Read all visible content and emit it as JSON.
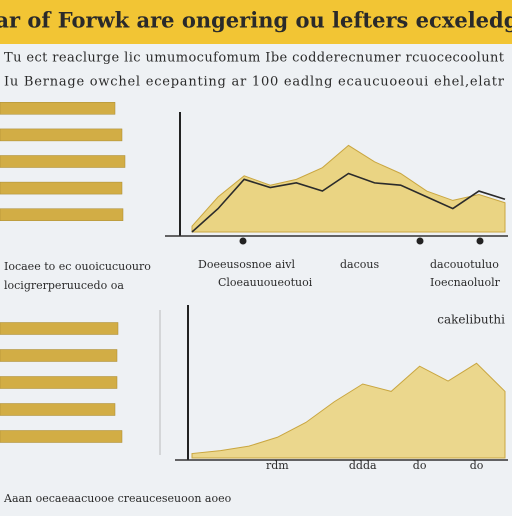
{
  "header": {
    "title": "Ocar of Forwk are ongering ou lefters ecxeledgon"
  },
  "intro": [
    "Tu ect reaclurge lic umumocufomum Ibe codderecnumer rcuocecoolunt",
    "Iu Bernage owchel ecepanting ar 100 eadlng ecaucuoeoui ehel,elatr"
  ],
  "captions": [
    "Iocaee to ec ouoicucuouro",
    "locigrerperuucedo oa",
    "Doeeusosnoe aivl",
    "Cloeauuoueotuoi",
    "dacous",
    "dacouotuluo",
    "Ioecnaoluolr"
  ],
  "footer": "Aaan oecaeaacuooe creauceseuoon aoeo",
  "chart_data": [
    {
      "type": "hbar",
      "categories": [
        null,
        null,
        null,
        null,
        null
      ],
      "values": [
        115,
        122,
        125,
        122,
        123
      ],
      "color": "#d2ad45",
      "xlim": [
        0,
        140
      ]
    },
    {
      "type": "area",
      "categories": [
        null,
        null,
        null,
        null,
        null,
        null,
        null,
        null,
        null,
        null,
        null,
        null,
        null
      ],
      "series": [
        {
          "name": "fill",
          "color": "#e9cf6e",
          "values": [
            5,
            30,
            48,
            40,
            45,
            55,
            74,
            60,
            50,
            35,
            27,
            32,
            25
          ]
        },
        {
          "name": "line",
          "color": "#2b2b2b",
          "values": [
            0,
            20,
            45,
            38,
            42,
            35,
            50,
            42,
            40,
            30,
            20,
            35,
            28
          ]
        }
      ],
      "ylim": [
        0,
        100
      ]
    },
    {
      "type": "hbar",
      "categories": [
        null,
        null,
        null,
        null,
        null
      ],
      "values": [
        118,
        117,
        117,
        115,
        122
      ],
      "color": "#d2ad45",
      "xlim": [
        0,
        140
      ]
    },
    {
      "type": "area",
      "title": "cakelibuthi",
      "categories": [
        null,
        null,
        null,
        "rdm",
        null,
        null,
        "ddda",
        null,
        "do",
        null,
        "do",
        null
      ],
      "series": [
        {
          "name": "fill",
          "color": "#ead27a",
          "values": [
            3,
            5,
            8,
            14,
            24,
            38,
            50,
            45,
            62,
            52,
            64,
            45
          ]
        }
      ],
      "ylim": [
        0,
        100
      ]
    }
  ]
}
